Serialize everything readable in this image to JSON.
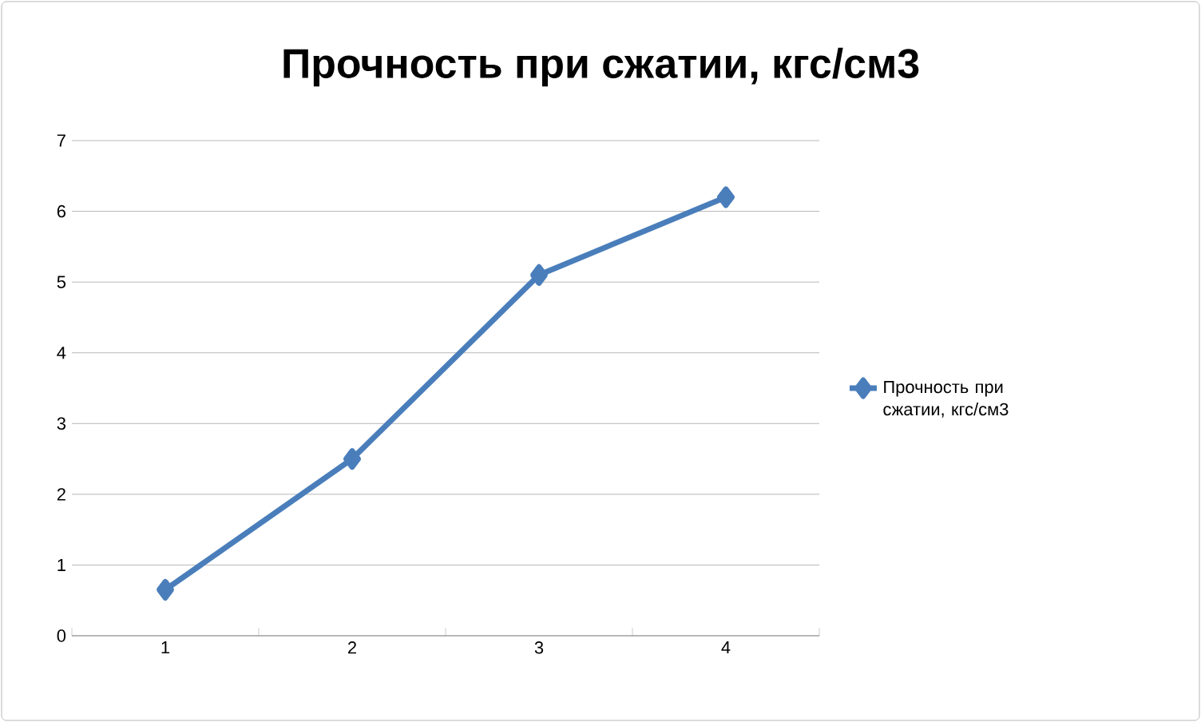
{
  "chart_data": {
    "type": "line",
    "title": "Прочность при сжатии, кгс/см3",
    "categories": [
      "1",
      "2",
      "3",
      "4"
    ],
    "series": [
      {
        "name": "Прочность при сжатии, кгс/см3",
        "color": "#4a7ebb",
        "values": [
          0.65,
          2.5,
          5.1,
          6.2
        ]
      }
    ],
    "ylim": [
      0,
      7
    ],
    "yticks": [
      0,
      1,
      2,
      3,
      4,
      5,
      6,
      7
    ],
    "grid": "y",
    "legend": "right",
    "marker": "diamond",
    "line_style": "solid"
  }
}
